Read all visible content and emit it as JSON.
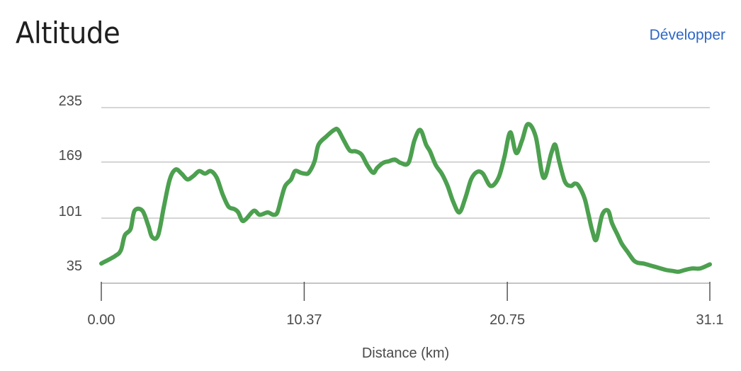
{
  "header": {
    "title": "Altitude",
    "expand_label": "Développer"
  },
  "chart_data": {
    "type": "line",
    "xlabel": "Distance (km)",
    "ylabel": "",
    "xlim": [
      0,
      31.1
    ],
    "ylim": [
      35,
      235
    ],
    "x_ticks": [
      "0.00",
      "10.37",
      "20.75",
      "31.1"
    ],
    "y_ticks": [
      "235",
      "169",
      "101",
      "35"
    ],
    "line_color": "#4ca04f",
    "grid": true,
    "x": [
      0,
      0.7,
      1.0,
      1.2,
      1.5,
      1.7,
      2.1,
      2.4,
      2.6,
      2.9,
      3.2,
      3.5,
      3.8,
      4.1,
      4.4,
      4.7,
      5.0,
      5.3,
      5.6,
      5.9,
      6.2,
      6.5,
      6.8,
      7.0,
      7.2,
      7.4,
      7.8,
      8.1,
      8.5,
      8.8,
      9.0,
      9.2,
      9.4,
      9.7,
      9.9,
      10.2,
      10.4,
      10.6,
      10.9,
      11.1,
      11.5,
      11.9,
      12.1,
      12.4,
      12.7,
      13.0,
      13.3,
      13.6,
      13.9,
      14.1,
      14.4,
      14.7,
      15.0,
      15.3,
      15.7,
      16.0,
      16.3,
      16.6,
      16.8,
      17.1,
      17.4,
      17.7,
      18.0,
      18.3,
      18.6,
      18.9,
      19.2,
      19.5,
      19.9,
      20.3,
      20.6,
      20.9,
      21.2,
      21.5,
      21.8,
      22.2,
      22.6,
      23.0,
      23.2,
      23.4,
      23.7,
      24.0,
      24.2,
      24.4,
      24.7,
      24.9,
      25.1,
      25.3,
      25.6,
      25.9,
      26.1,
      26.4,
      26.6,
      26.9,
      27.2,
      27.4,
      27.7,
      28.0,
      28.3,
      28.6,
      28.9,
      29.2,
      29.5,
      29.8,
      30.2,
      30.6,
      31.1
    ],
    "y": [
      46,
      55,
      62,
      80,
      88,
      110,
      110,
      92,
      78,
      80,
      115,
      148,
      160,
      155,
      148,
      152,
      158,
      155,
      158,
      150,
      130,
      115,
      112,
      108,
      98,
      100,
      110,
      105,
      108,
      105,
      108,
      125,
      140,
      148,
      158,
      156,
      155,
      156,
      170,
      190,
      200,
      208,
      208,
      195,
      183,
      182,
      178,
      165,
      156,
      162,
      168,
      170,
      172,
      168,
      168,
      195,
      208,
      190,
      182,
      165,
      155,
      140,
      120,
      108,
      125,
      148,
      157,
      155,
      140,
      150,
      175,
      205,
      180,
      195,
      215,
      200,
      150,
      180,
      190,
      170,
      145,
      140,
      143,
      140,
      125,
      105,
      85,
      75,
      105,
      110,
      95,
      80,
      70,
      60,
      50,
      47,
      46,
      44,
      42,
      40,
      38,
      37,
      36,
      38,
      40,
      40,
      45
    ]
  }
}
